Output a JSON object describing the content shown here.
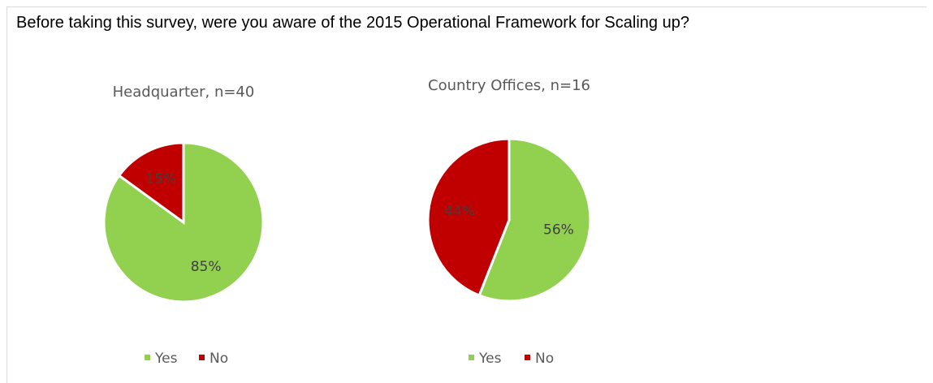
{
  "question": "Before taking this survey, were you aware of the 2015 Operational Framework for Scaling up?",
  "chart_data": [
    {
      "type": "pie",
      "title": "Headquarter, n=40",
      "categories": [
        "Yes",
        "No"
      ],
      "values": [
        85,
        15
      ],
      "labels": [
        "85%",
        "15%"
      ],
      "colors": [
        "#92d050",
        "#c00000"
      ],
      "legend": [
        "Yes",
        "No"
      ],
      "legend_position": "bottom"
    },
    {
      "type": "pie",
      "title": "Country Offices, n=16",
      "categories": [
        "Yes",
        "No"
      ],
      "values": [
        56,
        44
      ],
      "labels": [
        "56%",
        "44%"
      ],
      "colors": [
        "#92d050",
        "#c00000"
      ],
      "legend": [
        "Yes",
        "No"
      ],
      "legend_position": "bottom"
    }
  ]
}
